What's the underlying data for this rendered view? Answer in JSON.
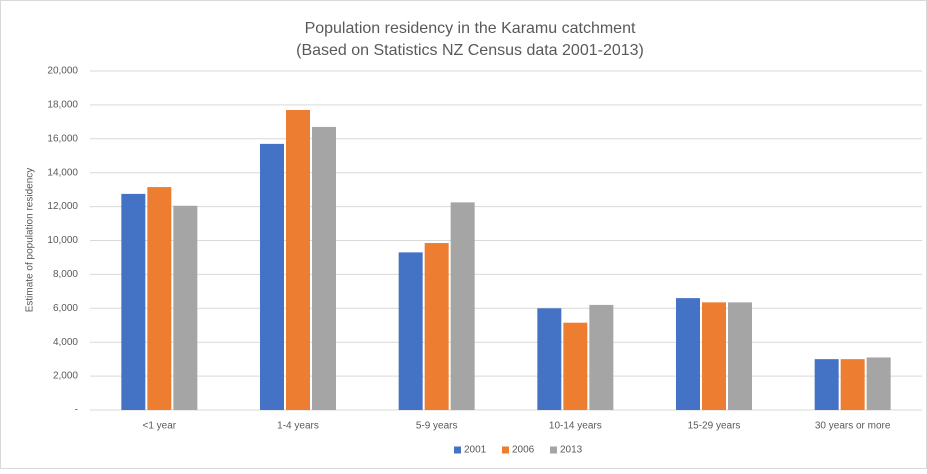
{
  "chart_data": {
    "type": "bar",
    "title": "Population residency in the Karamu catchment",
    "subtitle": "(Based on Statistics NZ Census data 2001-2013)",
    "y_label": "Estimate of population residency",
    "categories": [
      "<1 year",
      "1-4 years",
      "5-9 years",
      "10-14 years",
      "15-29 years",
      "30 years or more"
    ],
    "series": [
      {
        "name": "2001",
        "color": "#4472c4",
        "values": [
          12750,
          15700,
          9300,
          6000,
          6600,
          3000
        ]
      },
      {
        "name": "2006",
        "color": "#ed7d31",
        "values": [
          13150,
          17700,
          9850,
          5150,
          6350,
          3000
        ]
      },
      {
        "name": "2013",
        "color": "#a5a5a5",
        "values": [
          12050,
          16700,
          12250,
          6200,
          6350,
          3100
        ]
      }
    ],
    "ylim": [
      0,
      20000
    ],
    "yticks": [
      {
        "value": 0,
        "label": "-"
      },
      {
        "value": 2000,
        "label": "2,000"
      },
      {
        "value": 4000,
        "label": "4,000"
      },
      {
        "value": 6000,
        "label": "6,000"
      },
      {
        "value": 8000,
        "label": "8,000"
      },
      {
        "value": 10000,
        "label": "10,000"
      },
      {
        "value": 12000,
        "label": "12,000"
      },
      {
        "value": 14000,
        "label": "14,000"
      },
      {
        "value": 16000,
        "label": "16,000"
      },
      {
        "value": 18000,
        "label": "18,000"
      },
      {
        "value": 20000,
        "label": "20,000"
      }
    ],
    "grid": true,
    "legend": "bottom"
  }
}
